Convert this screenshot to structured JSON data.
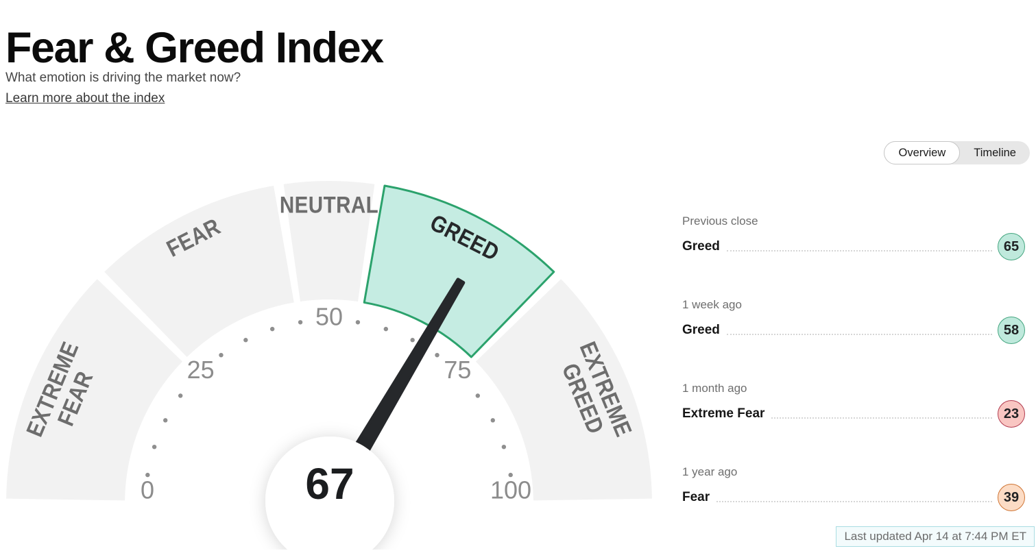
{
  "page": {
    "title": "Fear & Greed Index",
    "subtitle": "What emotion is driving the market now?",
    "learn_more_label": "Learn more about the index",
    "last_updated": "Last updated Apr 14 at 7:44 PM ET"
  },
  "view_toggle": {
    "options": [
      "Overview",
      "Timeline"
    ],
    "selected": "Overview"
  },
  "chart_data": {
    "type": "gauge",
    "title": "Fear & Greed Index",
    "min": 0,
    "max": 100,
    "value": 67,
    "value_display": "67",
    "current_label": "Greed",
    "tick_values": [
      0,
      25,
      50,
      75,
      100
    ],
    "dot_step": 5,
    "segments": [
      {
        "label": "EXTREME FEAR",
        "lines": [
          "EXTREME",
          "FEAR"
        ],
        "from": 0,
        "to": 25,
        "active": false
      },
      {
        "label": "FEAR",
        "lines": [
          "FEAR"
        ],
        "from": 25,
        "to": 45,
        "active": false
      },
      {
        "label": "NEUTRAL",
        "lines": [
          "NEUTRAL"
        ],
        "from": 45,
        "to": 55,
        "active": false
      },
      {
        "label": "GREED",
        "lines": [
          "GREED"
        ],
        "from": 55,
        "to": 75,
        "active": true
      },
      {
        "label": "EXTREME GREED",
        "lines": [
          "EXTREME",
          "GREED"
        ],
        "from": 75,
        "to": 100,
        "active": false
      }
    ],
    "colors": {
      "segment_inactive": "#f2f2f2",
      "segment_active_fill": "#c5ece2",
      "segment_active_stroke": "#2ba26c",
      "label_inactive": "#6d6d6d",
      "label_active": "#26282a",
      "ticks": "#8c8c8c",
      "dots": "#8f8f8f",
      "needle": "#26282b",
      "value_text": "#1b1d1f"
    }
  },
  "history": [
    {
      "period": "Previous close",
      "label": "Greed",
      "value": 65,
      "fill": "#bfe9dc",
      "stroke": "#44a57f"
    },
    {
      "period": "1 week ago",
      "label": "Greed",
      "value": 58,
      "fill": "#bfe9dc",
      "stroke": "#44a57f"
    },
    {
      "period": "1 month ago",
      "label": "Extreme Fear",
      "value": 23,
      "fill": "#f9c6c2",
      "stroke": "#b13a4e"
    },
    {
      "period": "1 year ago",
      "label": "Fear",
      "value": 39,
      "fill": "#fcdcc5",
      "stroke": "#cf7433"
    }
  ]
}
